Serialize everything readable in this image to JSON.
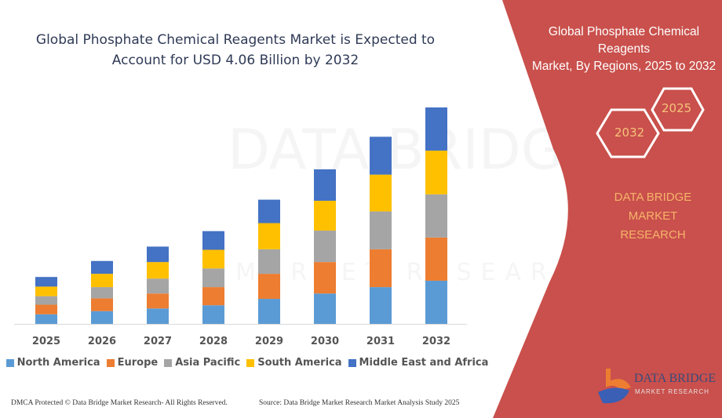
{
  "chart_data": {
    "type": "bar",
    "stacked": true,
    "title": "Global Phosphate Chemical Reagents Market is Expected to Account for USD 4.06 Billion by 2032",
    "title_lines": [
      "Global Phosphate Chemical Reagents Market is Expected to",
      "Account for USD 4.06 Billion by 2032"
    ],
    "xlabel": "",
    "ylabel": "",
    "y_axis_shown": false,
    "grid": false,
    "legend_position": "bottom",
    "categories": [
      "2025",
      "2026",
      "2027",
      "2028",
      "2029",
      "2030",
      "2031",
      "2032"
    ],
    "series": [
      {
        "name": "North America",
        "color": "#5B9BD5",
        "values": [
          0.18,
          0.24,
          0.29,
          0.35,
          0.47,
          0.57,
          0.69,
          0.81
        ]
      },
      {
        "name": "Europe",
        "color": "#ED7D31",
        "values": [
          0.18,
          0.24,
          0.28,
          0.34,
          0.47,
          0.59,
          0.71,
          0.81
        ]
      },
      {
        "name": "Asia Pacific",
        "color": "#A5A5A5",
        "values": [
          0.16,
          0.21,
          0.28,
          0.35,
          0.46,
          0.59,
          0.71,
          0.81
        ]
      },
      {
        "name": "South America",
        "color": "#FFC000",
        "values": [
          0.18,
          0.25,
          0.31,
          0.35,
          0.49,
          0.56,
          0.69,
          0.82
        ]
      },
      {
        "name": "Middle East and Africa",
        "color": "#4472C4",
        "values": [
          0.18,
          0.24,
          0.29,
          0.35,
          0.44,
          0.59,
          0.71,
          0.81
        ]
      }
    ],
    "ylim": [
      0,
      4.06
    ]
  },
  "footer": {
    "left": "DMCA Protected © Data Bridge Market Research-  All Rights Reserved.",
    "right": "Source: Data Bridge Market Research  Market Analysis Study 2025"
  },
  "panel": {
    "title_lines": [
      "Global Phosphate Chemical Reagents",
      "Market, By Regions, 2025 to 2032"
    ],
    "hex_start": "2025",
    "hex_end": "2032",
    "brand_lines": [
      "DATA BRIDGE MARKET",
      "RESEARCH"
    ],
    "logo_text": "DATA BRIDGE",
    "logo_sub": "MARKET RESEARCH",
    "color": "#C9504C"
  },
  "watermark": {
    "line1": "DATA BRIDGE",
    "line2": "MARKET RESEARCH"
  }
}
